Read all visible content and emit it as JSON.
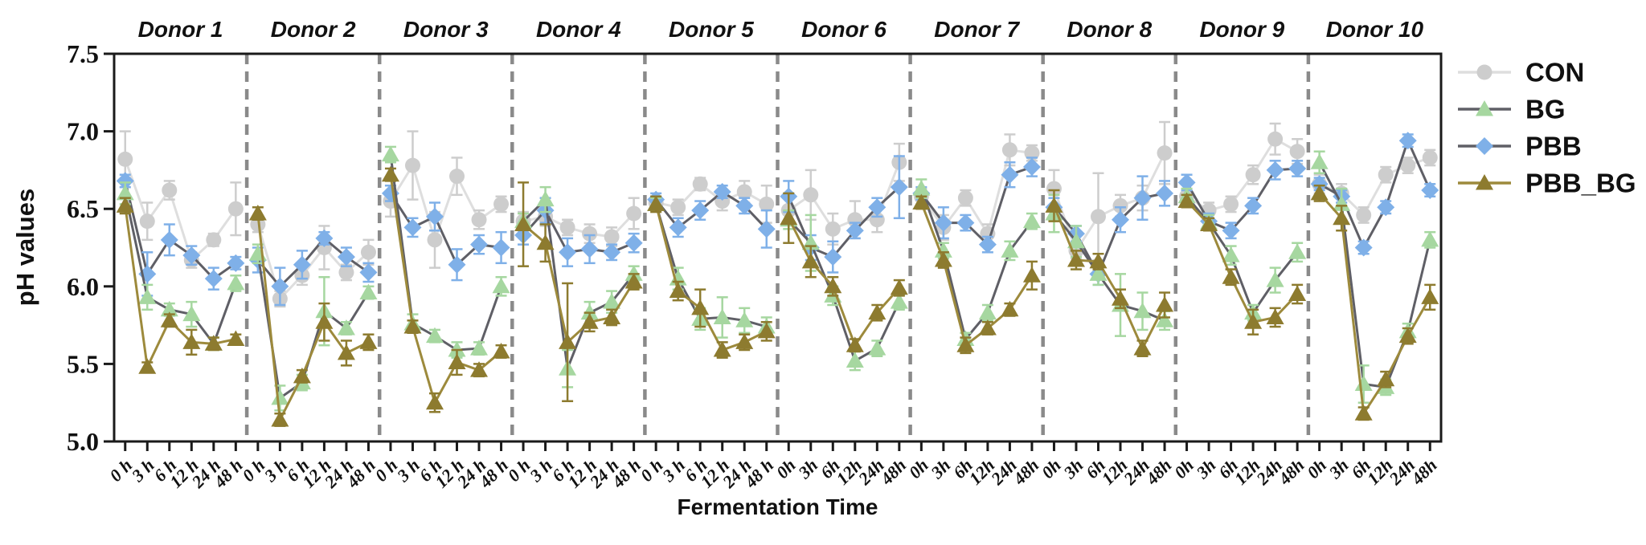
{
  "figure": {
    "ylabel": "pH values",
    "xlabel": "Fermentation Time",
    "background": "#ffffff"
  },
  "chart_data": {
    "type": "line",
    "title": "",
    "xlabel": "Fermentation Time",
    "ylabel": "pH values",
    "ylim": [
      5.0,
      7.5
    ],
    "yticks": [
      "5.0",
      "5.5",
      "6.0",
      "6.5",
      "7.0",
      "7.5"
    ],
    "grid": false,
    "legend_position": "right",
    "panel_separator": {
      "style": "dashed",
      "color": "#8a8a8a"
    },
    "frame_color": "#1a1a1a",
    "series_styles": [
      {
        "name": "CON",
        "marker": "circle",
        "marker_color": "#cdcdcd",
        "line_color": "#dedede"
      },
      {
        "name": "BG",
        "marker": "triangle",
        "marker_color": "#a6d7a0",
        "line_color": "#5f5f66"
      },
      {
        "name": "PBB",
        "marker": "diamond",
        "marker_color": "#7fb0e8",
        "line_color": "#5f5f66"
      },
      {
        "name": "PBB_BG",
        "marker": "triangle",
        "marker_color": "#8d7b2f",
        "line_color": "#9d8a3c"
      }
    ],
    "panels": [
      {
        "label": "Donor 1",
        "categories": [
          "0 h",
          "3 h",
          "6 h",
          "12 h",
          "24 h",
          "48 h"
        ],
        "series": [
          {
            "name": "CON",
            "values": [
              6.82,
              6.42,
              6.62,
              6.17,
              6.3,
              6.5
            ],
            "err": [
              0.18,
              0.12,
              0.06,
              0.05,
              0.04,
              0.17
            ]
          },
          {
            "name": "BG",
            "values": [
              6.6,
              5.93,
              5.85,
              5.82,
              5.63,
              6.02
            ],
            "err": [
              0.07,
              0.08,
              0.04,
              0.08,
              0.04,
              0.05
            ]
          },
          {
            "name": "PBB",
            "values": [
              6.68,
              6.08,
              6.3,
              6.2,
              6.05,
              6.15
            ],
            "err": [
              0.04,
              0.14,
              0.1,
              0.06,
              0.07,
              0.04
            ]
          },
          {
            "name": "PBB_BG",
            "values": [
              6.52,
              5.48,
              5.78,
              5.64,
              5.63,
              5.66
            ],
            "err": [
              0.05,
              0.03,
              0.04,
              0.08,
              0.04,
              0.03
            ]
          }
        ]
      },
      {
        "label": "Donor 2",
        "categories": [
          "0 h",
          "3 h",
          "6 h",
          "12 h",
          "24 h",
          "48 h"
        ],
        "series": [
          {
            "name": "CON",
            "values": [
              6.4,
              5.92,
              6.07,
              6.25,
              6.09,
              6.22
            ],
            "err": [
              0.05,
              0.05,
              0.06,
              0.14,
              0.05,
              0.08
            ]
          },
          {
            "name": "BG",
            "values": [
              6.21,
              5.28,
              5.38,
              5.84,
              5.73,
              5.96
            ],
            "err": [
              0.06,
              0.08,
              0.05,
              0.22,
              0.04,
              0.04
            ]
          },
          {
            "name": "PBB",
            "values": [
              6.17,
              6.0,
              6.14,
              6.31,
              6.19,
              6.09
            ],
            "err": [
              0.08,
              0.12,
              0.09,
              0.04,
              0.06,
              0.06
            ]
          },
          {
            "name": "PBB_BG",
            "values": [
              6.47,
              5.14,
              5.42,
              5.77,
              5.57,
              5.64
            ],
            "err": [
              0.04,
              0.04,
              0.04,
              0.12,
              0.08,
              0.05
            ]
          }
        ]
      },
      {
        "label": "Donor 3",
        "categories": [
          "0 h",
          "3 h",
          "6 h",
          "12 h",
          "24 h",
          "48 h"
        ],
        "series": [
          {
            "name": "CON",
            "values": [
              6.55,
              6.78,
              6.3,
              6.71,
              6.43,
              6.53
            ],
            "err": [
              0.1,
              0.22,
              0.18,
              0.12,
              0.06,
              0.05
            ]
          },
          {
            "name": "BG",
            "values": [
              6.85,
              5.76,
              5.68,
              5.59,
              5.6,
              6.0
            ],
            "err": [
              0.05,
              0.06,
              0.04,
              0.05,
              0.04,
              0.06
            ]
          },
          {
            "name": "PBB",
            "values": [
              6.6,
              6.38,
              6.45,
              6.14,
              6.27,
              6.25
            ],
            "err": [
              0.05,
              0.06,
              0.09,
              0.1,
              0.06,
              0.1
            ]
          },
          {
            "name": "PBB_BG",
            "values": [
              6.72,
              5.74,
              5.25,
              5.51,
              5.46,
              5.58
            ],
            "err": [
              0.04,
              0.04,
              0.06,
              0.08,
              0.04,
              0.04
            ]
          }
        ]
      },
      {
        "label": "Donor 4",
        "categories": [
          "0 h",
          "3 h",
          "6 h",
          "12 h",
          "24 h",
          "48 h"
        ],
        "series": [
          {
            "name": "CON",
            "values": [
              6.42,
              6.45,
              6.38,
              6.34,
              6.32,
              6.47
            ],
            "err": [
              0.06,
              0.06,
              0.05,
              0.06,
              0.06,
              0.1
            ]
          },
          {
            "name": "BG",
            "values": [
              6.42,
              6.56,
              5.47,
              5.83,
              5.9,
              6.08
            ],
            "err": [
              0.05,
              0.08,
              0.12,
              0.07,
              0.07,
              0.05
            ]
          },
          {
            "name": "PBB",
            "values": [
              6.33,
              6.49,
              6.22,
              6.24,
              6.22,
              6.28
            ],
            "err": [
              0.06,
              0.08,
              0.09,
              0.09,
              0.05,
              0.06
            ]
          },
          {
            "name": "PBB_BG",
            "values": [
              6.4,
              6.28,
              5.64,
              5.77,
              5.8,
              6.03
            ],
            "err": [
              0.27,
              0.12,
              0.38,
              0.06,
              0.05,
              0.05
            ]
          }
        ]
      },
      {
        "label": "Donor 5",
        "categories": [
          "0 h",
          "3 h",
          "6 h",
          "12 h",
          "24 h",
          "48 h"
        ],
        "series": [
          {
            "name": "CON",
            "values": [
              6.54,
              6.51,
              6.66,
              6.55,
              6.61,
              6.53
            ],
            "err": [
              0.04,
              0.05,
              0.04,
              0.06,
              0.07,
              0.12
            ]
          },
          {
            "name": "BG",
            "values": [
              6.53,
              6.05,
              5.79,
              5.8,
              5.78,
              5.74
            ],
            "err": [
              0.04,
              0.07,
              0.07,
              0.13,
              0.08,
              0.06
            ]
          },
          {
            "name": "PBB",
            "values": [
              6.56,
              6.38,
              6.49,
              6.61,
              6.52,
              6.37
            ],
            "err": [
              0.04,
              0.06,
              0.06,
              0.04,
              0.05,
              0.12
            ]
          },
          {
            "name": "PBB_BG",
            "values": [
              6.53,
              5.97,
              5.86,
              5.59,
              5.64,
              5.71
            ],
            "err": [
              0.05,
              0.06,
              0.12,
              0.05,
              0.05,
              0.06
            ]
          }
        ]
      },
      {
        "label": "Donor 6",
        "categories": [
          "0h",
          "3h",
          "6h",
          "12h",
          "24h",
          "48h"
        ],
        "series": [
          {
            "name": "CON",
            "values": [
              6.49,
              6.59,
              6.37,
              6.43,
              6.43,
              6.8
            ],
            "err": [
              0.08,
              0.16,
              0.1,
              0.12,
              0.08,
              0.12
            ]
          },
          {
            "name": "BG",
            "values": [
              6.43,
              6.28,
              5.94,
              5.52,
              5.6,
              5.9
            ],
            "err": [
              0.06,
              0.18,
              0.06,
              0.06,
              0.05,
              0.05
            ]
          },
          {
            "name": "PBB",
            "values": [
              6.58,
              6.25,
              6.19,
              6.36,
              6.51,
              6.64
            ],
            "err": [
              0.1,
              0.08,
              0.1,
              0.05,
              0.06,
              0.2
            ]
          },
          {
            "name": "PBB_BG",
            "values": [
              6.44,
              6.16,
              6.0,
              5.62,
              5.83,
              5.99
            ],
            "err": [
              0.16,
              0.1,
              0.06,
              0.04,
              0.05,
              0.05
            ]
          }
        ]
      },
      {
        "label": "Donor 7",
        "categories": [
          "0h",
          "3h",
          "6h",
          "12h",
          "24h",
          "48h"
        ],
        "series": [
          {
            "name": "CON",
            "values": [
              6.58,
              6.38,
              6.57,
              6.34,
              6.88,
              6.86
            ],
            "err": [
              0.05,
              0.08,
              0.05,
              0.06,
              0.1,
              0.05
            ]
          },
          {
            "name": "BG",
            "values": [
              6.63,
              6.23,
              5.66,
              5.83,
              6.23,
              6.42
            ],
            "err": [
              0.06,
              0.05,
              0.04,
              0.05,
              0.06,
              0.05
            ]
          },
          {
            "name": "PBB",
            "values": [
              6.6,
              6.41,
              6.41,
              6.27,
              6.72,
              6.77
            ],
            "err": [
              0.04,
              0.1,
              0.05,
              0.05,
              0.08,
              0.06
            ]
          },
          {
            "name": "PBB_BG",
            "values": [
              6.54,
              6.17,
              5.62,
              5.73,
              5.85,
              6.07
            ],
            "err": [
              0.04,
              0.05,
              0.05,
              0.04,
              0.04,
              0.09
            ]
          }
        ]
      },
      {
        "label": "Donor 8",
        "categories": [
          "0h",
          "3h",
          "6h",
          "12h",
          "24h",
          "48h"
        ],
        "series": [
          {
            "name": "CON",
            "values": [
              6.63,
              6.23,
              6.45,
              6.52,
              6.57,
              6.86
            ],
            "err": [
              0.12,
              0.05,
              0.28,
              0.07,
              0.08,
              0.2
            ]
          },
          {
            "name": "BG",
            "values": [
              6.47,
              6.29,
              6.08,
              5.88,
              5.84,
              5.78
            ],
            "err": [
              0.12,
              0.1,
              0.07,
              0.2,
              0.12,
              0.06
            ]
          },
          {
            "name": "PBB",
            "values": [
              6.51,
              6.34,
              6.08,
              6.43,
              6.57,
              6.6
            ],
            "err": [
              0.06,
              0.05,
              0.07,
              0.08,
              0.14,
              0.08
            ]
          },
          {
            "name": "PBB_BG",
            "values": [
              6.52,
              6.17,
              6.16,
              5.92,
              5.6,
              5.88
            ],
            "err": [
              0.1,
              0.06,
              0.05,
              0.06,
              0.05,
              0.08
            ]
          }
        ]
      },
      {
        "label": "Donor 9",
        "categories": [
          "0h",
          "3h",
          "6h",
          "12h",
          "24h",
          "48h"
        ],
        "series": [
          {
            "name": "CON",
            "values": [
              6.58,
              6.49,
              6.53,
              6.72,
              6.95,
              6.87
            ],
            "err": [
              0.05,
              0.05,
              0.05,
              0.06,
              0.1,
              0.08
            ]
          },
          {
            "name": "BG",
            "values": [
              6.58,
              6.41,
              6.2,
              5.83,
              6.04,
              6.22
            ],
            "err": [
              0.05,
              0.05,
              0.06,
              0.05,
              0.08,
              0.06
            ]
          },
          {
            "name": "PBB",
            "values": [
              6.67,
              6.42,
              6.36,
              6.52,
              6.75,
              6.76
            ],
            "err": [
              0.05,
              0.05,
              0.05,
              0.05,
              0.06,
              0.05
            ]
          },
          {
            "name": "PBB_BG",
            "values": [
              6.55,
              6.4,
              6.06,
              5.77,
              5.8,
              5.95
            ],
            "err": [
              0.04,
              0.04,
              0.05,
              0.08,
              0.06,
              0.06
            ]
          }
        ]
      },
      {
        "label": "Donor 10",
        "categories": [
          "0h",
          "3h",
          "6h",
          "12h",
          "24h",
          "48h"
        ],
        "series": [
          {
            "name": "CON",
            "values": [
              6.66,
              6.6,
              6.46,
              6.72,
              6.78,
              6.83
            ],
            "err": [
              0.06,
              0.06,
              0.05,
              0.05,
              0.05,
              0.05
            ]
          },
          {
            "name": "BG",
            "values": [
              6.8,
              6.53,
              5.37,
              5.35,
              5.71,
              6.3
            ],
            "err": [
              0.07,
              0.1,
              0.12,
              0.05,
              0.05,
              0.05
            ]
          },
          {
            "name": "PBB",
            "values": [
              6.66,
              6.58,
              6.25,
              6.51,
              6.94,
              6.62
            ],
            "err": [
              0.04,
              0.04,
              0.04,
              0.04,
              0.04,
              0.04
            ]
          },
          {
            "name": "PBB_BG",
            "values": [
              6.6,
              6.44,
              5.18,
              5.4,
              5.68,
              5.93
            ],
            "err": [
              0.05,
              0.08,
              0.04,
              0.05,
              0.05,
              0.08
            ]
          }
        ]
      }
    ],
    "legend": [
      "CON",
      "BG",
      "PBB",
      "PBB_BG"
    ]
  }
}
